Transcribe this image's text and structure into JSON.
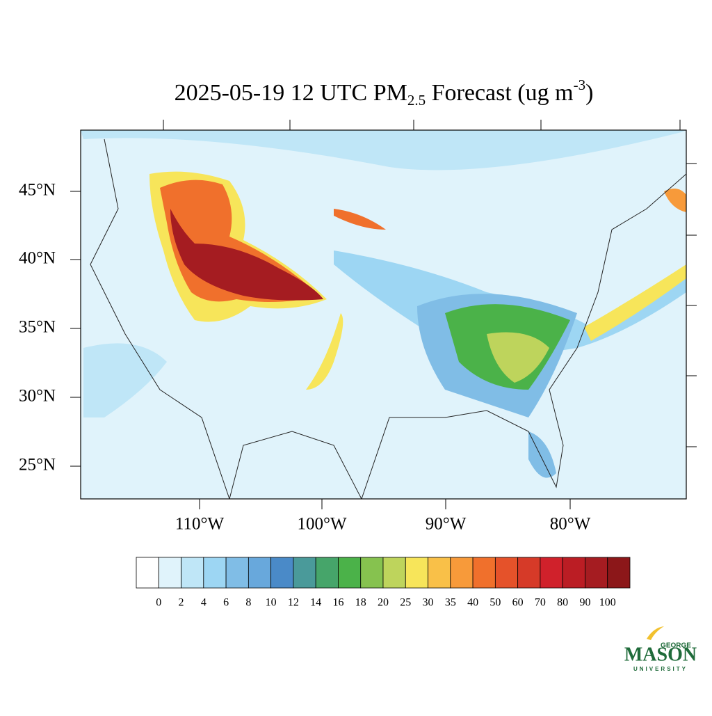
{
  "title": {
    "main": "2025-05-19 12 UTC PM",
    "sub": "2.5",
    "rest": " Forecast (ug m",
    "sup": "-3",
    "end": ")"
  },
  "map": {
    "lat_labels": [
      "45°N",
      "40°N",
      "35°N",
      "30°N",
      "25°N"
    ],
    "lon_labels": [
      "110°W",
      "100°W",
      "90°W",
      "80°W"
    ]
  },
  "colorbar": {
    "colors": [
      "#ffffff",
      "#e0f3fb",
      "#bfe6f7",
      "#9dd6f3",
      "#80bde6",
      "#68a8dc",
      "#4a8ac8",
      "#4a9a9a",
      "#46a56a",
      "#4bb249",
      "#86c24f",
      "#bed45c",
      "#f7e55a",
      "#f9c048",
      "#f79a3a",
      "#f0702c",
      "#e5522a",
      "#d63a28",
      "#d0212b",
      "#bb1d24",
      "#a51c21",
      "#8c1719"
    ],
    "labels": [
      0,
      2,
      4,
      6,
      8,
      10,
      12,
      14,
      16,
      18,
      20,
      25,
      30,
      35,
      40,
      50,
      60,
      70,
      80,
      90,
      100
    ]
  },
  "logo": {
    "top": "GEORGE",
    "main": "MASON",
    "bottom": "UNIVERSITY"
  }
}
